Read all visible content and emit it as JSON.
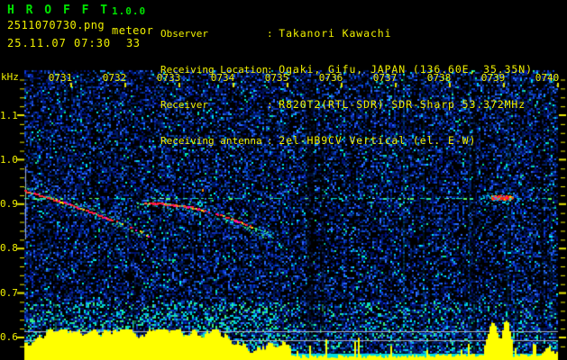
{
  "header": {
    "app_title": "H R O F F T",
    "app_version": "1.0.0",
    "filename": "2511070730.png",
    "mode_label": "meteor",
    "timestamp": "25.11.07 07:30",
    "echo_count": "33",
    "separator": ":",
    "info_rows": [
      {
        "label": "Observer",
        "value": "Takanori Kawachi"
      },
      {
        "label": "Receiving Location",
        "value": "Ogaki, Gifu, JAPAN (136.60E, 35.35N)"
      },
      {
        "label": "Receiver",
        "value": "R820T2(RTL-SDR) SDR-Sharp 53.372MHz"
      },
      {
        "label": "Receiving antenna",
        "value": "2el-HB9CV Vertical (el. E-W)"
      }
    ]
  },
  "axes": {
    "freq_unit": "kHz",
    "freq_tick_labels": [
      "1.1",
      "1.0",
      "0.9",
      "0.8",
      "0.7",
      "0.6"
    ],
    "time_tick_labels": [
      "0731",
      "0732",
      "0733",
      "0734",
      "0735",
      "0736",
      "0737",
      "0738",
      "0739",
      "0740"
    ]
  },
  "colors": {
    "title_green": "#00e400",
    "text_yellow": "#f0f000",
    "tick_yellow": "#e8e800",
    "signal_yellow": "#ffff00",
    "strip_cyan": "#00dede",
    "carrier_cyan": "#00d8c8",
    "echo_red": "#ff2030",
    "grid_gray": "#b4b8c2",
    "background": "#000000"
  }
}
